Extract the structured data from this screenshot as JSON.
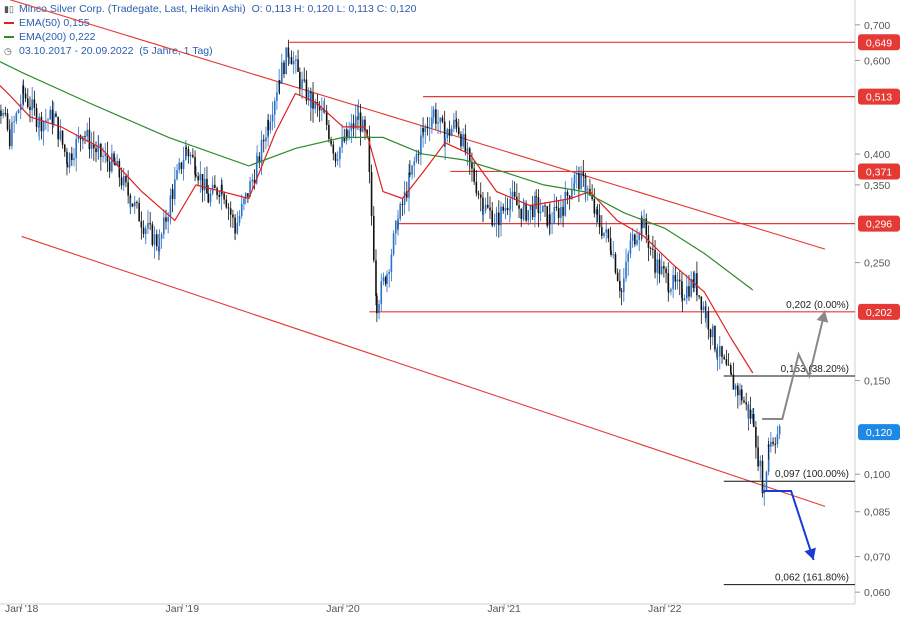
{
  "header": {
    "title": "Minco Silver Corp. (Tradegate, Last, Heikin Ashi)",
    "ohlc": "O: 0,113  H: 0,120  L: 0,113  C: 0,120",
    "ema50_label": "EMA(50)",
    "ema50_value": "0,155",
    "ema200_label": "EMA(200)",
    "ema200_value": "0,222",
    "period": "03.10.2017 - 20.09.2022",
    "period_note": "(5 Jahre, 1 Tag)"
  },
  "colors": {
    "ema50": "#e02020",
    "ema200": "#2e8b2e",
    "level": "#e53935",
    "current": "#1e88e5",
    "candle_up": "#2a70c8",
    "candle_down": "#111111",
    "projection_up": "#888888",
    "projection_down": "#1a3ad8"
  },
  "chart_data": {
    "type": "line",
    "title": "Minco Silver Corp. (Tradegate, Last, Heikin Ashi)",
    "y_scale": "log",
    "ylim": [
      0.057,
      0.74
    ],
    "xlim": [
      "2017-10-03",
      "2022-12-31"
    ],
    "x_ticks": [
      {
        "label": "Jan '18",
        "date": "2018-01-01"
      },
      {
        "label": "Jan '19",
        "date": "2019-01-01"
      },
      {
        "label": "Jan '20",
        "date": "2020-01-01"
      },
      {
        "label": "Jan '21",
        "date": "2021-01-01"
      },
      {
        "label": "Jan '22",
        "date": "2022-01-01"
      }
    ],
    "y_ticks": [
      {
        "label": "0,700",
        "value": 0.7
      },
      {
        "label": "0,600",
        "value": 0.6
      },
      {
        "label": "0,400",
        "value": 0.4
      },
      {
        "label": "0,350",
        "value": 0.35
      },
      {
        "label": "0,250",
        "value": 0.25
      },
      {
        "label": "0,150",
        "value": 0.15
      },
      {
        "label": "0,100",
        "value": 0.1
      },
      {
        "label": "0,085",
        "value": 0.085
      },
      {
        "label": "0,070",
        "value": 0.07
      },
      {
        "label": "0,060",
        "value": 0.06
      }
    ],
    "series": [
      {
        "name": "Minco Silver Corp.",
        "kind": "heikin-ashi",
        "points": [
          [
            "2017-10-03",
            0.58
          ],
          [
            "2017-11-10",
            0.5
          ],
          [
            "2017-12-05",
            0.43
          ],
          [
            "2018-01-05",
            0.52
          ],
          [
            "2018-02-10",
            0.46
          ],
          [
            "2018-03-15",
            0.47
          ],
          [
            "2018-04-15",
            0.39
          ],
          [
            "2018-05-20",
            0.44
          ],
          [
            "2018-06-25",
            0.4
          ],
          [
            "2018-08-01",
            0.38
          ],
          [
            "2018-09-05",
            0.33
          ],
          [
            "2018-10-10",
            0.29
          ],
          [
            "2018-11-10",
            0.27
          ],
          [
            "2018-12-10",
            0.34
          ],
          [
            "2019-01-10",
            0.41
          ],
          [
            "2019-02-01",
            0.38
          ],
          [
            "2019-03-01",
            0.33
          ],
          [
            "2019-04-01",
            0.35
          ],
          [
            "2019-05-01",
            0.29
          ],
          [
            "2019-05-25",
            0.33
          ],
          [
            "2019-06-20",
            0.38
          ],
          [
            "2019-07-15",
            0.46
          ],
          [
            "2019-08-10",
            0.56
          ],
          [
            "2019-09-01",
            0.63
          ],
          [
            "2019-09-25",
            0.55
          ],
          [
            "2019-10-20",
            0.5
          ],
          [
            "2019-11-20",
            0.47
          ],
          [
            "2019-12-15",
            0.4
          ],
          [
            "2020-01-10",
            0.43
          ],
          [
            "2020-02-05",
            0.47
          ],
          [
            "2020-02-25",
            0.42
          ],
          [
            "2020-03-18",
            0.21
          ],
          [
            "2020-04-10",
            0.24
          ],
          [
            "2020-05-05",
            0.3
          ],
          [
            "2020-06-01",
            0.36
          ],
          [
            "2020-07-01",
            0.44
          ],
          [
            "2020-07-25",
            0.48
          ],
          [
            "2020-08-20",
            0.43
          ],
          [
            "2020-09-15",
            0.46
          ],
          [
            "2020-10-15",
            0.38
          ],
          [
            "2020-11-15",
            0.32
          ],
          [
            "2020-12-15",
            0.3
          ],
          [
            "2021-01-15",
            0.33
          ],
          [
            "2021-02-15",
            0.31
          ],
          [
            "2021-03-15",
            0.32
          ],
          [
            "2021-04-15",
            0.3
          ],
          [
            "2021-05-15",
            0.32
          ],
          [
            "2021-06-10",
            0.36
          ],
          [
            "2021-07-05",
            0.35
          ],
          [
            "2021-08-01",
            0.3
          ],
          [
            "2021-09-01",
            0.27
          ],
          [
            "2021-09-25",
            0.22
          ],
          [
            "2021-10-15",
            0.27
          ],
          [
            "2021-11-10",
            0.3
          ],
          [
            "2021-12-10",
            0.25
          ],
          [
            "2022-01-10",
            0.23
          ],
          [
            "2022-02-10",
            0.22
          ],
          [
            "2022-03-10",
            0.23
          ],
          [
            "2022-04-05",
            0.2
          ],
          [
            "2022-05-01",
            0.17
          ],
          [
            "2022-06-01",
            0.15
          ],
          [
            "2022-06-25",
            0.14
          ],
          [
            "2022-07-10",
            0.13
          ],
          [
            "2022-07-22",
            0.127
          ],
          [
            "2022-08-01",
            0.108
          ],
          [
            "2022-08-15",
            0.092
          ],
          [
            "2022-08-25",
            0.115
          ],
          [
            "2022-09-20",
            0.12
          ]
        ]
      },
      {
        "name": "EMA(50)",
        "points": [
          [
            "2017-10-03",
            0.58
          ],
          [
            "2017-12-01",
            0.52
          ],
          [
            "2018-01-20",
            0.47
          ],
          [
            "2018-04-01",
            0.45
          ],
          [
            "2018-07-01",
            0.41
          ],
          [
            "2018-10-01",
            0.34
          ],
          [
            "2018-12-15",
            0.3
          ],
          [
            "2019-02-01",
            0.35
          ],
          [
            "2019-04-01",
            0.34
          ],
          [
            "2019-06-01",
            0.33
          ],
          [
            "2019-08-01",
            0.44
          ],
          [
            "2019-09-15",
            0.52
          ],
          [
            "2019-11-01",
            0.5
          ],
          [
            "2020-01-01",
            0.45
          ],
          [
            "2020-02-20",
            0.45
          ],
          [
            "2020-04-01",
            0.34
          ],
          [
            "2020-05-15",
            0.33
          ],
          [
            "2020-07-01",
            0.37
          ],
          [
            "2020-08-20",
            0.42
          ],
          [
            "2020-10-15",
            0.4
          ],
          [
            "2020-12-15",
            0.34
          ],
          [
            "2021-03-01",
            0.32
          ],
          [
            "2021-06-01",
            0.33
          ],
          [
            "2021-07-15",
            0.34
          ],
          [
            "2021-09-15",
            0.3
          ],
          [
            "2021-11-15",
            0.28
          ],
          [
            "2022-01-15",
            0.25
          ],
          [
            "2022-04-01",
            0.22
          ],
          [
            "2022-06-01",
            0.18
          ],
          [
            "2022-07-20",
            0.155
          ]
        ]
      },
      {
        "name": "EMA(200)",
        "points": [
          [
            "2017-10-03",
            0.62
          ],
          [
            "2018-01-01",
            0.57
          ],
          [
            "2018-06-01",
            0.5
          ],
          [
            "2018-12-01",
            0.43
          ],
          [
            "2019-06-01",
            0.38
          ],
          [
            "2019-09-15",
            0.41
          ],
          [
            "2020-01-01",
            0.43
          ],
          [
            "2020-04-01",
            0.43
          ],
          [
            "2020-07-01",
            0.4
          ],
          [
            "2020-10-01",
            0.39
          ],
          [
            "2021-01-01",
            0.37
          ],
          [
            "2021-04-01",
            0.35
          ],
          [
            "2021-07-01",
            0.34
          ],
          [
            "2021-10-01",
            0.31
          ],
          [
            "2022-01-01",
            0.29
          ],
          [
            "2022-04-01",
            0.26
          ],
          [
            "2022-07-20",
            0.222
          ]
        ]
      }
    ],
    "horizontal_levels": [
      {
        "value": 0.649,
        "label": "0,649",
        "from": "2019-09-01"
      },
      {
        "value": 0.513,
        "label": "0,513",
        "from": "2020-07-01"
      },
      {
        "value": 0.371,
        "label": "0,371",
        "from": "2020-09-01"
      },
      {
        "value": 0.296,
        "label": "0,296",
        "from": "2020-05-05"
      },
      {
        "value": 0.202,
        "label": "0,202",
        "from": "2020-03-01"
      }
    ],
    "current_price": {
      "value": 0.12,
      "label": "0,120"
    },
    "fibonacci": [
      {
        "value": 0.202,
        "label": "0,202 (0.00%)"
      },
      {
        "value": 0.153,
        "label": "0,153 (38.20%)"
      },
      {
        "value": 0.097,
        "label": "0,097 (100.00%)"
      },
      {
        "value": 0.062,
        "label": "0,062 (161.80%)"
      }
    ],
    "channel_lines": [
      {
        "from": [
          "2017-10-03",
          0.81
        ],
        "to": [
          "2022-12-31",
          0.265
        ]
      },
      {
        "from": [
          "2018-01-01",
          0.28
        ],
        "to": [
          "2022-12-31",
          0.087
        ]
      }
    ],
    "projection_up": [
      [
        "2022-08-10",
        0.127
      ],
      [
        "2022-09-25",
        0.127
      ],
      [
        "2022-11-01",
        0.168
      ],
      [
        "2022-11-25",
        0.153
      ],
      [
        "2022-12-31",
        0.203
      ]
    ],
    "projection_down": [
      [
        "2022-08-10",
        0.093
      ],
      [
        "2022-10-15",
        0.093
      ],
      [
        "2022-12-05",
        0.069
      ]
    ]
  }
}
